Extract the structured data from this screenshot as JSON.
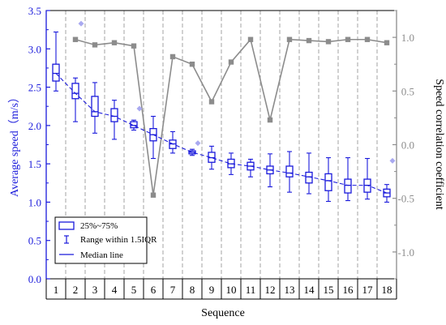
{
  "chart_data": {
    "type": "box",
    "xlabel": "Sequence",
    "ylabel_left": "Average speed（m/s）",
    "ylabel_right": "Speed correlation coefficient",
    "categories": [
      "1",
      "2",
      "3",
      "4",
      "5",
      "6",
      "7",
      "8",
      "9",
      "10",
      "11",
      "12",
      "13",
      "14",
      "15",
      "16",
      "17",
      "18"
    ],
    "left_axis": {
      "ylim": [
        0,
        3.5
      ],
      "ticks": [
        "0.0",
        "0.5",
        "1.0",
        "1.5",
        "2.0",
        "2.5",
        "3.0",
        "3.5"
      ],
      "color": "#1a1adb"
    },
    "right_axis": {
      "ylim": [
        -1.25,
        1.25
      ],
      "ticks": [
        "-1.0",
        "-0.5",
        "0.0",
        "0.5",
        "1.0"
      ],
      "color": "#8c8c8c"
    },
    "boxes": [
      {
        "q1": 2.58,
        "median": 2.68,
        "q3": 2.8,
        "lo": 2.45,
        "hi": 3.22,
        "outliers": []
      },
      {
        "q1": 2.35,
        "median": 2.42,
        "q3": 2.55,
        "lo": 2.05,
        "hi": 2.62,
        "outliers": [
          3.33
        ]
      },
      {
        "q1": 2.12,
        "median": 2.18,
        "q3": 2.38,
        "lo": 1.9,
        "hi": 2.56,
        "outliers": []
      },
      {
        "q1": 2.05,
        "median": 2.12,
        "q3": 2.22,
        "lo": 1.82,
        "hi": 2.33,
        "outliers": []
      },
      {
        "q1": 1.97,
        "median": 2.0,
        "q3": 2.05,
        "lo": 1.94,
        "hi": 2.07,
        "outliers": [
          2.22
        ]
      },
      {
        "q1": 1.8,
        "median": 1.88,
        "q3": 1.96,
        "lo": 1.57,
        "hi": 2.12,
        "outliers": []
      },
      {
        "q1": 1.7,
        "median": 1.76,
        "q3": 1.81,
        "lo": 1.64,
        "hi": 1.92,
        "outliers": []
      },
      {
        "q1": 1.63,
        "median": 1.65,
        "q3": 1.67,
        "lo": 1.61,
        "hi": 1.69,
        "outliers": [
          1.77
        ]
      },
      {
        "q1": 1.52,
        "median": 1.58,
        "q3": 1.65,
        "lo": 1.43,
        "hi": 1.73,
        "outliers": []
      },
      {
        "q1": 1.45,
        "median": 1.5,
        "q3": 1.56,
        "lo": 1.36,
        "hi": 1.64,
        "outliers": []
      },
      {
        "q1": 1.42,
        "median": 1.47,
        "q3": 1.52,
        "lo": 1.33,
        "hi": 1.56,
        "outliers": []
      },
      {
        "q1": 1.37,
        "median": 1.42,
        "q3": 1.47,
        "lo": 1.2,
        "hi": 1.63,
        "outliers": []
      },
      {
        "q1": 1.33,
        "median": 1.38,
        "q3": 1.47,
        "lo": 1.13,
        "hi": 1.66,
        "outliers": []
      },
      {
        "q1": 1.25,
        "median": 1.33,
        "q3": 1.39,
        "lo": 1.11,
        "hi": 1.64,
        "outliers": []
      },
      {
        "q1": 1.15,
        "median": 1.28,
        "q3": 1.37,
        "lo": 1.01,
        "hi": 1.58,
        "outliers": []
      },
      {
        "q1": 1.12,
        "median": 1.22,
        "q3": 1.3,
        "lo": 1.02,
        "hi": 1.58,
        "outliers": []
      },
      {
        "q1": 1.13,
        "median": 1.22,
        "q3": 1.3,
        "lo": 1.04,
        "hi": 1.57,
        "outliers": []
      },
      {
        "q1": 1.07,
        "median": 1.12,
        "q3": 1.17,
        "lo": 1.0,
        "hi": 1.23,
        "outliers": [
          1.54
        ]
      }
    ],
    "median_line": [
      2.68,
      2.42,
      2.18,
      2.12,
      2.0,
      1.88,
      1.76,
      1.65,
      1.58,
      1.5,
      1.47,
      1.42,
      1.38,
      1.33,
      1.28,
      1.22,
      1.22,
      1.12
    ],
    "correlation": {
      "x": [
        2,
        3,
        4,
        5,
        6,
        7,
        8,
        9,
        10,
        11,
        12,
        13,
        14,
        15,
        16,
        17,
        18
      ],
      "y": [
        0.98,
        0.93,
        0.95,
        0.92,
        -0.47,
        0.82,
        0.75,
        0.4,
        0.77,
        0.98,
        0.23,
        0.98,
        0.97,
        0.96,
        0.98,
        0.98,
        0.95
      ]
    },
    "legend": {
      "position": "bottom-left",
      "items": [
        "25%~75%",
        "Range within 1.5IQR",
        "Median line"
      ]
    },
    "colors": {
      "box": "#1a1adb",
      "outlier": "#a9a9f0",
      "correlation": "#8c8c8c",
      "grid": "#9a9a9a"
    }
  }
}
